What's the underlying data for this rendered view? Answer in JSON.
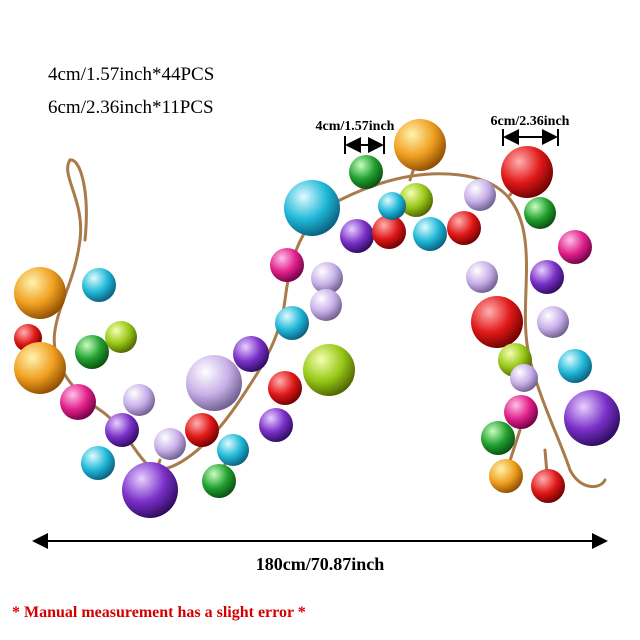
{
  "specs": {
    "line_1": "4cm/1.57inch*44PCS",
    "line_2": "6cm/2.36inch*11PCS"
  },
  "dimensions": {
    "small_ball": "4cm/1.57inch",
    "large_ball": "6cm/2.36inch",
    "length": "180cm/70.87inch"
  },
  "note": "* Manual measurement has a slight error *"
}
